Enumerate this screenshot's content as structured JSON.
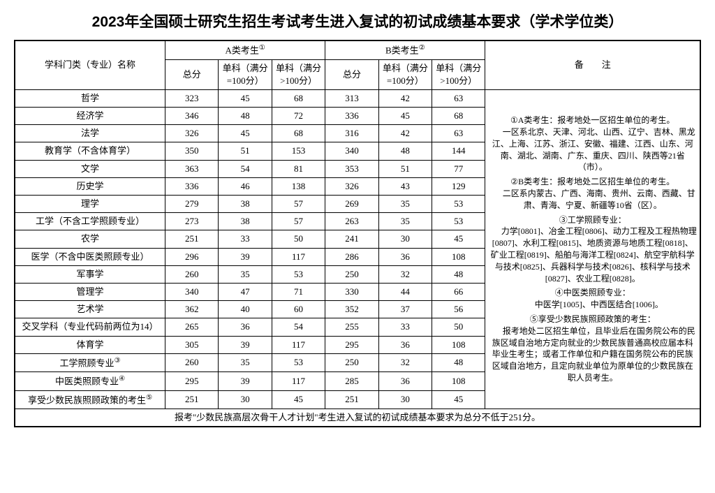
{
  "title": "2023年全国硕士研究生招生考试考生进入复试的初试成绩基本要求（学术学位类）",
  "headers": {
    "subject": "学科门类（专业）名称",
    "groupA": "A类考生",
    "groupB": "B类考生",
    "notes": "备　　注",
    "total": "总分",
    "single100": "单科（满分=100分）",
    "singleOver100": "单科（满分>100分）",
    "sup1": "①",
    "sup2": "②"
  },
  "rows": [
    {
      "name": "哲学",
      "a_total": "323",
      "a_s100": "45",
      "a_s100p": "68",
      "b_total": "313",
      "b_s100": "42",
      "b_s100p": "63"
    },
    {
      "name": "经济学",
      "a_total": "346",
      "a_s100": "48",
      "a_s100p": "72",
      "b_total": "336",
      "b_s100": "45",
      "b_s100p": "68"
    },
    {
      "name": "法学",
      "a_total": "326",
      "a_s100": "45",
      "a_s100p": "68",
      "b_total": "316",
      "b_s100": "42",
      "b_s100p": "63"
    },
    {
      "name": "教育学（不含体育学）",
      "a_total": "350",
      "a_s100": "51",
      "a_s100p": "153",
      "b_total": "340",
      "b_s100": "48",
      "b_s100p": "144"
    },
    {
      "name": "文学",
      "a_total": "363",
      "a_s100": "54",
      "a_s100p": "81",
      "b_total": "353",
      "b_s100": "51",
      "b_s100p": "77"
    },
    {
      "name": "历史学",
      "a_total": "336",
      "a_s100": "46",
      "a_s100p": "138",
      "b_total": "326",
      "b_s100": "43",
      "b_s100p": "129"
    },
    {
      "name": "理学",
      "a_total": "279",
      "a_s100": "38",
      "a_s100p": "57",
      "b_total": "269",
      "b_s100": "35",
      "b_s100p": "53"
    },
    {
      "name": "工学（不含工学照顾专业）",
      "a_total": "273",
      "a_s100": "38",
      "a_s100p": "57",
      "b_total": "263",
      "b_s100": "35",
      "b_s100p": "53"
    },
    {
      "name": "农学",
      "a_total": "251",
      "a_s100": "33",
      "a_s100p": "50",
      "b_total": "241",
      "b_s100": "30",
      "b_s100p": "45"
    },
    {
      "name": "医学（不含中医类照顾专业）",
      "a_total": "296",
      "a_s100": "39",
      "a_s100p": "117",
      "b_total": "286",
      "b_s100": "36",
      "b_s100p": "108"
    },
    {
      "name": "军事学",
      "a_total": "260",
      "a_s100": "35",
      "a_s100p": "53",
      "b_total": "250",
      "b_s100": "32",
      "b_s100p": "48"
    },
    {
      "name": "管理学",
      "a_total": "340",
      "a_s100": "47",
      "a_s100p": "71",
      "b_total": "330",
      "b_s100": "44",
      "b_s100p": "66"
    },
    {
      "name": "艺术学",
      "a_total": "362",
      "a_s100": "40",
      "a_s100p": "60",
      "b_total": "352",
      "b_s100": "37",
      "b_s100p": "56"
    },
    {
      "name": "交叉学科（专业代码前两位为14）",
      "a_total": "265",
      "a_s100": "36",
      "a_s100p": "54",
      "b_total": "255",
      "b_s100": "33",
      "b_s100p": "50"
    },
    {
      "name": "体育学",
      "a_total": "305",
      "a_s100": "39",
      "a_s100p": "117",
      "b_total": "295",
      "b_s100": "36",
      "b_s100p": "108"
    },
    {
      "name": "工学照顾专业",
      "sup": "③",
      "a_total": "260",
      "a_s100": "35",
      "a_s100p": "53",
      "b_total": "250",
      "b_s100": "32",
      "b_s100p": "48"
    },
    {
      "name": "中医类照顾专业",
      "sup": "④",
      "a_total": "295",
      "a_s100": "39",
      "a_s100p": "117",
      "b_total": "285",
      "b_s100": "36",
      "b_s100p": "108"
    },
    {
      "name": "享受少数民族照顾政策的考生",
      "sup": "⑤",
      "a_total": "251",
      "a_s100": "30",
      "a_s100p": "45",
      "b_total": "251",
      "b_s100": "30",
      "b_s100p": "45"
    }
  ],
  "notes": {
    "p1": "①A类考生：报考地处一区招生单位的考生。",
    "p2": "一区系北京、天津、河北、山西、辽宁、吉林、黑龙江、上海、江苏、浙江、安徽、福建、江西、山东、河南、湖北、湖南、广东、重庆、四川、陕西等21省（市）。",
    "p3": "②B类考生：报考地处二区招生单位的考生。",
    "p4": "二区系内蒙古、广西、海南、贵州、云南、西藏、甘肃、青海、宁夏、新疆等10省（区）。",
    "p5": "③工学照顾专业：",
    "p6": "力学[0801]、冶金工程[0806]、动力工程及工程热物理[0807]、水利工程[0815]、地质资源与地质工程[0818]、矿业工程[0819]、船舶与海洋工程[0824]、航空宇航科学与技术[0825]、兵器科学与技术[0826]、核科学与技术[0827]、农业工程[0828]。",
    "p7": "④中医类照顾专业：",
    "p8": "中医学[1005]、中西医结合[1006]。",
    "p9": "⑤享受少数民族照顾政策的考生：",
    "p10": "报考地处二区招生单位，且毕业后在国务院公布的民族区域自治地方定向就业的少数民族普通高校应届本科毕业生考生；或者工作单位和户籍在国务院公布的民族区域自治地方，且定向就业单位为原单位的少数民族在职人员考生。"
  },
  "footer": "报考\"少数民族高层次骨干人才计划\"考生进入复试的初试成绩基本要求为总分不低于251分。"
}
